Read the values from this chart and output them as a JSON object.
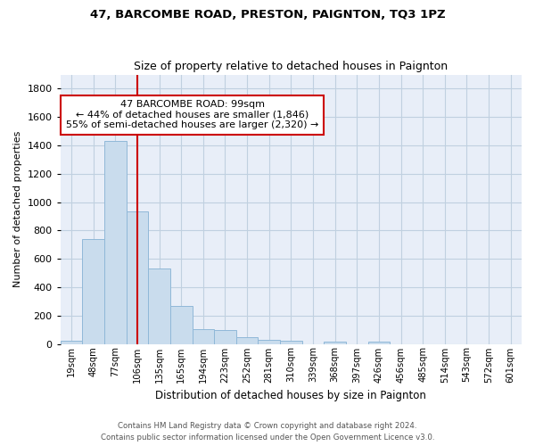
{
  "title1": "47, BARCOMBE ROAD, PRESTON, PAIGNTON, TQ3 1PZ",
  "title2": "Size of property relative to detached houses in Paignton",
  "xlabel": "Distribution of detached houses by size in Paignton",
  "ylabel": "Number of detached properties",
  "footnote1": "Contains HM Land Registry data © Crown copyright and database right 2024.",
  "footnote2": "Contains public sector information licensed under the Open Government Licence v3.0.",
  "bar_labels": [
    "19sqm",
    "48sqm",
    "77sqm",
    "106sqm",
    "135sqm",
    "165sqm",
    "194sqm",
    "223sqm",
    "252sqm",
    "281sqm",
    "310sqm",
    "339sqm",
    "368sqm",
    "397sqm",
    "426sqm",
    "456sqm",
    "485sqm",
    "514sqm",
    "543sqm",
    "572sqm",
    "601sqm"
  ],
  "bar_values": [
    22,
    740,
    1430,
    935,
    530,
    270,
    105,
    95,
    45,
    30,
    20,
    0,
    18,
    0,
    18,
    0,
    0,
    0,
    0,
    0,
    0
  ],
  "bar_color": "#c9dced",
  "bar_edge_color": "#90b8d8",
  "grid_color": "#c0d0e0",
  "bg_color": "#e8eef8",
  "red_line_x": 3.0,
  "annotation_line1": "47 BARCOMBE ROAD: 99sqm",
  "annotation_line2": "← 44% of detached houses are smaller (1,846)",
  "annotation_line3": "55% of semi-detached houses are larger (2,320) →",
  "annotation_box_color": "#ffffff",
  "annotation_border_color": "#cc0000",
  "ylim_max": 1900,
  "yticks": [
    0,
    200,
    400,
    600,
    800,
    1000,
    1200,
    1400,
    1600,
    1800
  ]
}
